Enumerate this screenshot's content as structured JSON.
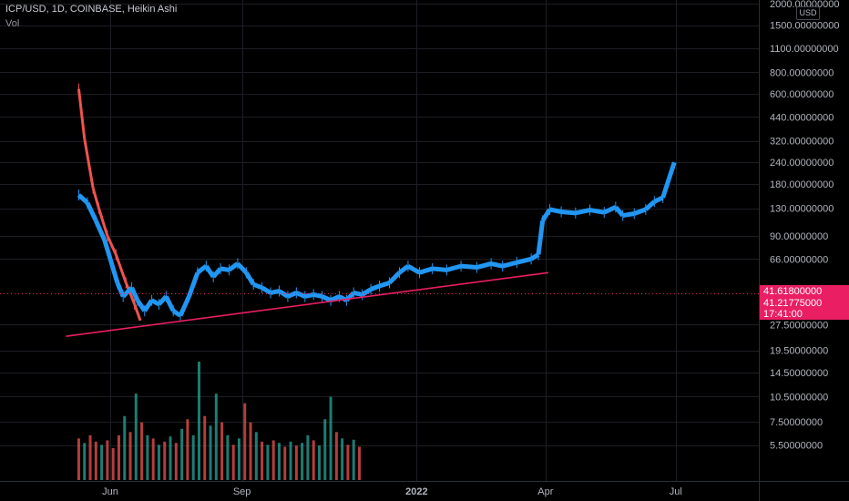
{
  "header": {
    "symbol_line": "ICP/USD, 1D, COINBASE, Heikin Ashi",
    "volume_label": "Vol"
  },
  "price_scale": {
    "currency_label": "USD",
    "last_price_tag": "41.61800000",
    "close_price_tag": "41.21775000",
    "countdown": "17:41:00",
    "tag_color": "#e91e63"
  },
  "colors": {
    "background": "#000000",
    "grid": "#1c1e24",
    "axis_text": "#b2b5be",
    "up_candle": "#2196f3",
    "down_candle": "#ef5350",
    "vol_up": "#26a69a",
    "vol_down": "#ef5350",
    "trendline": "#e91e63"
  },
  "chart_data": {
    "type": "candlestick",
    "scale": "log",
    "ylim": [
      4.5,
      2000
    ],
    "y_ticks": [
      "2000.00000000",
      "1500.00000000",
      "1100.00000000",
      "800.00000000",
      "600.00000000",
      "440.00000000",
      "320.00000000",
      "240.00000000",
      "180.00000000",
      "130.00000000",
      "90.00000000",
      "66.00000000",
      "27.50000000",
      "19.50000000",
      "14.50000000",
      "10.50000000",
      "7.50000000",
      "5.50000000"
    ],
    "y_tick_values": [
      2000,
      1500,
      1100,
      800,
      600,
      440,
      320,
      240,
      180,
      130,
      90,
      66,
      27.5,
      19.5,
      14.5,
      10.5,
      7.5,
      5.5
    ],
    "x_ticks": [
      "Jun",
      "Sep",
      "2022",
      "Apr",
      "Jul"
    ],
    "x_tick_dates": [
      "2021-06-01",
      "2021-09-01",
      "2022-01-01",
      "2022-04-01",
      "2022-07-01"
    ],
    "x_range": [
      "2021-03-16",
      "2022-08-28"
    ],
    "series": [
      {
        "role": "price-segments",
        "points": [
          {
            "date": "2021-05-10",
            "value": 640,
            "dir": "down"
          },
          {
            "date": "2021-05-14",
            "value": 330,
            "dir": "down"
          },
          {
            "date": "2021-05-20",
            "value": 170,
            "dir": "down"
          },
          {
            "date": "2021-05-24",
            "value": 130,
            "dir": "down"
          },
          {
            "date": "2021-05-30",
            "value": 90,
            "dir": "down"
          },
          {
            "date": "2021-06-05",
            "value": 70,
            "dir": "down"
          },
          {
            "date": "2021-06-12",
            "value": 48,
            "dir": "down"
          },
          {
            "date": "2021-06-18",
            "value": 36,
            "dir": "down"
          },
          {
            "date": "2021-06-22",
            "value": 29,
            "dir": "down"
          }
        ]
      },
      {
        "role": "price-segments",
        "points": [
          {
            "date": "2021-05-10",
            "value": 155,
            "dir": "up"
          },
          {
            "date": "2021-05-16",
            "value": 140,
            "dir": "up"
          },
          {
            "date": "2021-05-22",
            "value": 110,
            "dir": "up"
          },
          {
            "date": "2021-05-28",
            "value": 85,
            "dir": "up"
          },
          {
            "date": "2021-06-01",
            "value": 66,
            "dir": "up"
          },
          {
            "date": "2021-06-06",
            "value": 48,
            "dir": "up"
          },
          {
            "date": "2021-06-10",
            "value": 40,
            "dir": "up"
          },
          {
            "date": "2021-06-16",
            "value": 45,
            "dir": "up"
          },
          {
            "date": "2021-06-20",
            "value": 38,
            "dir": "up"
          },
          {
            "date": "2021-06-25",
            "value": 33,
            "dir": "up"
          },
          {
            "date": "2021-06-30",
            "value": 38,
            "dir": "up"
          },
          {
            "date": "2021-07-05",
            "value": 36,
            "dir": "up"
          },
          {
            "date": "2021-07-10",
            "value": 40,
            "dir": "up"
          },
          {
            "date": "2021-07-15",
            "value": 33,
            "dir": "up"
          },
          {
            "date": "2021-07-20",
            "value": 31,
            "dir": "up"
          },
          {
            "date": "2021-07-26",
            "value": 40,
            "dir": "up"
          },
          {
            "date": "2021-08-01",
            "value": 55,
            "dir": "up"
          },
          {
            "date": "2021-08-07",
            "value": 60,
            "dir": "up"
          },
          {
            "date": "2021-08-12",
            "value": 52,
            "dir": "up"
          },
          {
            "date": "2021-08-17",
            "value": 58,
            "dir": "up"
          },
          {
            "date": "2021-08-23",
            "value": 57,
            "dir": "up"
          },
          {
            "date": "2021-08-29",
            "value": 62,
            "dir": "up"
          },
          {
            "date": "2021-09-04",
            "value": 55,
            "dir": "up"
          },
          {
            "date": "2021-09-09",
            "value": 47,
            "dir": "up"
          },
          {
            "date": "2021-09-15",
            "value": 45,
            "dir": "up"
          },
          {
            "date": "2021-09-21",
            "value": 42,
            "dir": "up"
          },
          {
            "date": "2021-09-27",
            "value": 43,
            "dir": "up"
          },
          {
            "date": "2021-10-03",
            "value": 40,
            "dir": "up"
          },
          {
            "date": "2021-10-09",
            "value": 42,
            "dir": "up"
          },
          {
            "date": "2021-10-15",
            "value": 40,
            "dir": "up"
          },
          {
            "date": "2021-10-21",
            "value": 41,
            "dir": "up"
          },
          {
            "date": "2021-10-27",
            "value": 40,
            "dir": "up"
          },
          {
            "date": "2021-11-02",
            "value": 38,
            "dir": "up"
          },
          {
            "date": "2021-11-08",
            "value": 40,
            "dir": "up"
          },
          {
            "date": "2021-11-13",
            "value": 38,
            "dir": "up"
          },
          {
            "date": "2021-11-18",
            "value": 42,
            "dir": "up"
          },
          {
            "date": "2021-11-24",
            "value": 41,
            "dir": "up"
          },
          {
            "date": "2021-11-30",
            "value": 44,
            "dir": "up"
          },
          {
            "date": "2021-12-06",
            "value": 46,
            "dir": "up"
          },
          {
            "date": "2021-12-13",
            "value": 48,
            "dir": "up"
          },
          {
            "date": "2021-12-20",
            "value": 55,
            "dir": "up"
          },
          {
            "date": "2021-12-26",
            "value": 60,
            "dir": "up"
          },
          {
            "date": "2022-01-03",
            "value": 55,
            "dir": "up"
          },
          {
            "date": "2022-01-12",
            "value": 58,
            "dir": "up"
          },
          {
            "date": "2022-01-22",
            "value": 57,
            "dir": "up"
          },
          {
            "date": "2022-02-01",
            "value": 60,
            "dir": "up"
          },
          {
            "date": "2022-02-12",
            "value": 59,
            "dir": "up"
          },
          {
            "date": "2022-02-22",
            "value": 62,
            "dir": "up"
          },
          {
            "date": "2022-03-02",
            "value": 60,
            "dir": "up"
          },
          {
            "date": "2022-03-12",
            "value": 63,
            "dir": "up"
          },
          {
            "date": "2022-03-22",
            "value": 66,
            "dir": "up"
          },
          {
            "date": "2022-03-27",
            "value": 70,
            "dir": "up"
          },
          {
            "date": "2022-03-30",
            "value": 110,
            "dir": "up"
          },
          {
            "date": "2022-04-04",
            "value": 128,
            "dir": "up"
          },
          {
            "date": "2022-04-12",
            "value": 124,
            "dir": "up"
          },
          {
            "date": "2022-04-22",
            "value": 122,
            "dir": "up"
          },
          {
            "date": "2022-05-02",
            "value": 127,
            "dir": "up"
          },
          {
            "date": "2022-05-12",
            "value": 123,
            "dir": "up"
          },
          {
            "date": "2022-05-20",
            "value": 132,
            "dir": "up"
          },
          {
            "date": "2022-05-25",
            "value": 118,
            "dir": "up"
          },
          {
            "date": "2022-06-02",
            "value": 121,
            "dir": "up"
          },
          {
            "date": "2022-06-10",
            "value": 128,
            "dir": "up"
          },
          {
            "date": "2022-06-16",
            "value": 142,
            "dir": "up"
          },
          {
            "date": "2022-06-22",
            "value": 150,
            "dir": "up"
          },
          {
            "date": "2022-06-26",
            "value": 190,
            "dir": "up"
          },
          {
            "date": "2022-06-30",
            "value": 240,
            "dir": "up"
          }
        ]
      }
    ],
    "trendline": {
      "start": {
        "date": "2021-05-01",
        "value": 23.5
      },
      "end": {
        "date": "2022-04-03",
        "value": 55
      }
    },
    "volume": [
      {
        "date": "2021-05-10",
        "value": 6.5,
        "dir": "down"
      },
      {
        "date": "2021-05-14",
        "value": 5.8,
        "dir": "up"
      },
      {
        "date": "2021-05-18",
        "value": 7.0,
        "dir": "down"
      },
      {
        "date": "2021-05-22",
        "value": 6.0,
        "dir": "down"
      },
      {
        "date": "2021-05-26",
        "value": 5.5,
        "dir": "up"
      },
      {
        "date": "2021-05-30",
        "value": 6.2,
        "dir": "down"
      },
      {
        "date": "2021-06-03",
        "value": 5.0,
        "dir": "down"
      },
      {
        "date": "2021-06-07",
        "value": 7.0,
        "dir": "down"
      },
      {
        "date": "2021-06-11",
        "value": 10.0,
        "dir": "up"
      },
      {
        "date": "2021-06-15",
        "value": 7.5,
        "dir": "down"
      },
      {
        "date": "2021-06-19",
        "value": 13.5,
        "dir": "up"
      },
      {
        "date": "2021-06-23",
        "value": 9.0,
        "dir": "down"
      },
      {
        "date": "2021-06-27",
        "value": 7.0,
        "dir": "up"
      },
      {
        "date": "2021-07-01",
        "value": 6.5,
        "dir": "down"
      },
      {
        "date": "2021-07-05",
        "value": 5.5,
        "dir": "up"
      },
      {
        "date": "2021-07-09",
        "value": 6.0,
        "dir": "down"
      },
      {
        "date": "2021-07-13",
        "value": 6.8,
        "dir": "up"
      },
      {
        "date": "2021-07-17",
        "value": 5.8,
        "dir": "down"
      },
      {
        "date": "2021-07-21",
        "value": 8.0,
        "dir": "up"
      },
      {
        "date": "2021-07-25",
        "value": 9.5,
        "dir": "down"
      },
      {
        "date": "2021-07-29",
        "value": 7.0,
        "dir": "up"
      },
      {
        "date": "2021-08-02",
        "value": 18.5,
        "dir": "up"
      },
      {
        "date": "2021-08-06",
        "value": 10.0,
        "dir": "down"
      },
      {
        "date": "2021-08-10",
        "value": 8.5,
        "dir": "up"
      },
      {
        "date": "2021-08-14",
        "value": 13.5,
        "dir": "up"
      },
      {
        "date": "2021-08-18",
        "value": 9.0,
        "dir": "down"
      },
      {
        "date": "2021-08-22",
        "value": 7.0,
        "dir": "up"
      },
      {
        "date": "2021-08-26",
        "value": 5.5,
        "dir": "down"
      },
      {
        "date": "2021-08-30",
        "value": 6.5,
        "dir": "up"
      },
      {
        "date": "2021-09-03",
        "value": 12.0,
        "dir": "down"
      },
      {
        "date": "2021-09-07",
        "value": 9.0,
        "dir": "down"
      },
      {
        "date": "2021-09-11",
        "value": 7.5,
        "dir": "up"
      },
      {
        "date": "2021-09-15",
        "value": 6.0,
        "dir": "down"
      },
      {
        "date": "2021-09-19",
        "value": 5.5,
        "dir": "up"
      },
      {
        "date": "2021-09-23",
        "value": 6.2,
        "dir": "down"
      },
      {
        "date": "2021-09-27",
        "value": 5.8,
        "dir": "up"
      },
      {
        "date": "2021-10-01",
        "value": 5.2,
        "dir": "down"
      },
      {
        "date": "2021-10-05",
        "value": 6.0,
        "dir": "up"
      },
      {
        "date": "2021-10-09",
        "value": 5.4,
        "dir": "down"
      },
      {
        "date": "2021-10-13",
        "value": 5.8,
        "dir": "up"
      },
      {
        "date": "2021-10-17",
        "value": 7.0,
        "dir": "up"
      },
      {
        "date": "2021-10-21",
        "value": 6.2,
        "dir": "down"
      },
      {
        "date": "2021-10-25",
        "value": 5.4,
        "dir": "up"
      },
      {
        "date": "2021-10-29",
        "value": 9.5,
        "dir": "up"
      },
      {
        "date": "2021-11-02",
        "value": 13.0,
        "dir": "up"
      },
      {
        "date": "2021-11-06",
        "value": 7.5,
        "dir": "down"
      },
      {
        "date": "2021-11-10",
        "value": 6.5,
        "dir": "up"
      },
      {
        "date": "2021-11-14",
        "value": 5.5,
        "dir": "down"
      },
      {
        "date": "2021-11-18",
        "value": 6.3,
        "dir": "up"
      },
      {
        "date": "2021-11-22",
        "value": 5.2,
        "dir": "down"
      }
    ]
  }
}
